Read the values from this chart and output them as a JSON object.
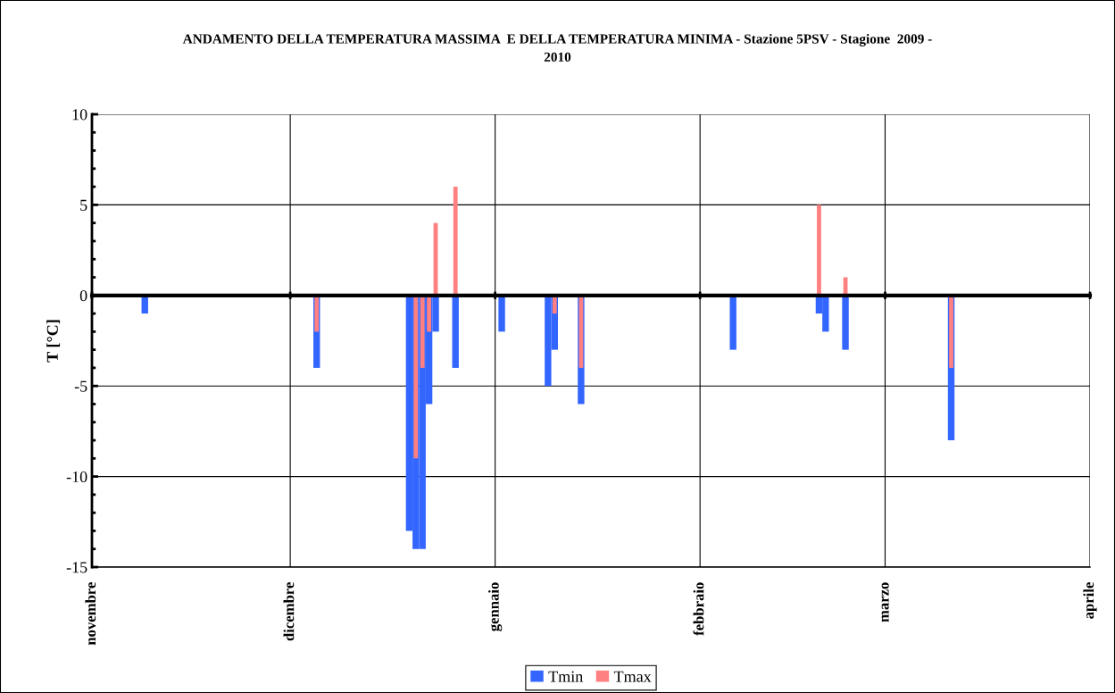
{
  "chart_data": {
    "type": "bar",
    "title": "ANDAMENTO DELLA TEMPERATURA MASSIMA  E DELLA TEMPERATURA MINIMA - Stazione 5PSV - Stagione  2009 -\n2010",
    "ylabel": "T [°C]",
    "x": [
      "2009-11-09",
      "2009-12-05",
      "2009-12-19",
      "2009-12-20",
      "2009-12-21",
      "2009-12-22",
      "2009-12-23",
      "2009-12-26",
      "2010-01-02",
      "2010-01-09",
      "2010-01-10",
      "2010-01-14",
      "2010-02-06",
      "2010-02-19",
      "2010-02-20",
      "2010-02-23",
      "2010-03-11"
    ],
    "series": [
      {
        "name": "Tmin",
        "color": "#3366ff",
        "values": [
          -1,
          -4,
          -13,
          -14,
          -14,
          -6,
          -2,
          -4,
          -2,
          -5,
          -3,
          -6,
          -3,
          -1,
          -2,
          -3,
          -8
        ]
      },
      {
        "name": "Tmax",
        "color": "#ff8080",
        "values": [
          null,
          -2,
          null,
          -9,
          -4,
          -2,
          4,
          6,
          null,
          null,
          -1,
          -4,
          null,
          5,
          null,
          1,
          -4
        ]
      }
    ],
    "xlim": [
      "2009-11-01",
      "2010-04-01"
    ],
    "xticks": [
      {
        "value": "2009-11-01",
        "label": "novembre"
      },
      {
        "value": "2009-12-01",
        "label": "dicembre"
      },
      {
        "value": "2010-01-01",
        "label": "gennaio"
      },
      {
        "value": "2010-02-01",
        "label": "febbraio"
      },
      {
        "value": "2010-03-01",
        "label": "marzo"
      },
      {
        "value": "2010-04-01",
        "label": "aprile"
      }
    ],
    "ylim": [
      -15,
      10
    ],
    "yticks": [
      -15,
      -10,
      -5,
      0,
      5,
      10
    ],
    "grid": true,
    "legend": "bottom"
  }
}
